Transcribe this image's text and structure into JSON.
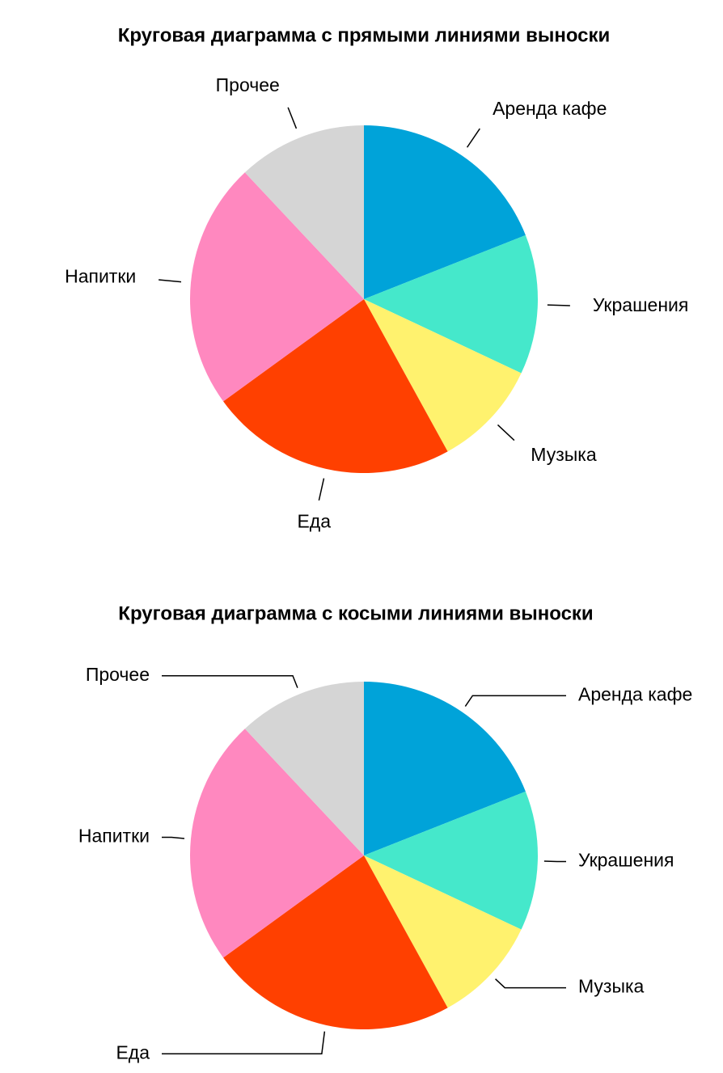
{
  "chart_data": [
    {
      "type": "pie",
      "title": "Круговая диаграмма с прямыми линиями выноски",
      "categories": [
        "Аренда кафе",
        "Украшения",
        "Музыка",
        "Еда",
        "Напитки",
        "Прочее"
      ],
      "values": [
        19,
        13,
        10,
        23,
        23,
        12
      ],
      "colors": [
        "#00a3d9",
        "#45e8cb",
        "#fff26e",
        "#ff4000",
        "#ff88bf",
        "#d5d5d5"
      ],
      "leader_lines": "straight"
    },
    {
      "type": "pie",
      "title": "Круговая диаграмма с косыми линиями выноски",
      "categories": [
        "Аренда кафе",
        "Украшения",
        "Музыка",
        "Еда",
        "Напитки",
        "Прочее"
      ],
      "values": [
        19,
        13,
        10,
        23,
        23,
        12
      ],
      "colors": [
        "#00a3d9",
        "#45e8cb",
        "#fff26e",
        "#ff4000",
        "#ff88bf",
        "#d5d5d5"
      ],
      "leader_lines": "bent"
    }
  ]
}
